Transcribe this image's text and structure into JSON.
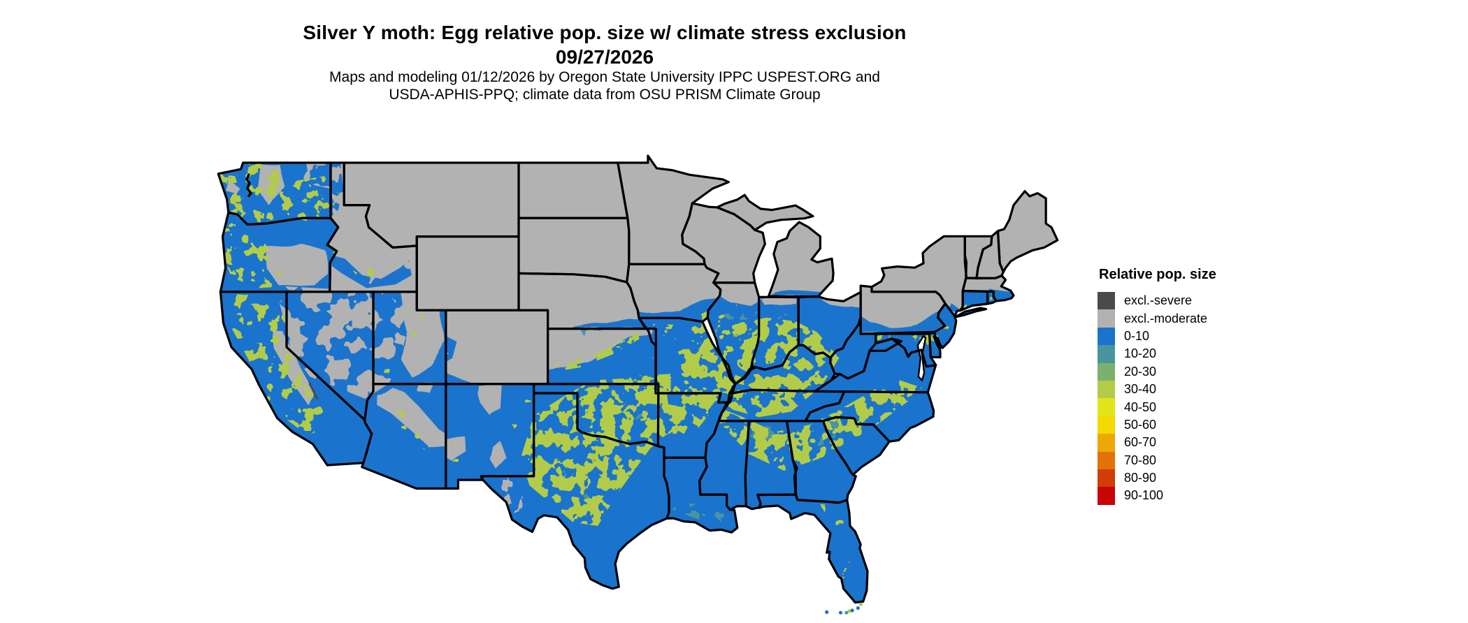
{
  "title": {
    "line1": "Silver Y moth: Egg relative pop. size w/ climate stress exclusion",
    "date": "09/27/2026"
  },
  "subtitle": {
    "line1": "Maps and modeling 01/12/2026 by Oregon State University IPPC USPEST.ORG and",
    "line2": "USDA-APHIS-PPQ; climate data from OSU PRISM Climate Group"
  },
  "legend": {
    "title": "Relative pop. size",
    "items": [
      {
        "label": "excl.-severe",
        "color": "#4a4a4a"
      },
      {
        "label": "excl.-moderate",
        "color": "#b2b2b2"
      },
      {
        "label": "0-10",
        "color": "#1a73cc"
      },
      {
        "label": "10-20",
        "color": "#4a94a0"
      },
      {
        "label": "20-30",
        "color": "#7cb06e"
      },
      {
        "label": "30-40",
        "color": "#b2cc49"
      },
      {
        "label": "40-50",
        "color": "#e2e519"
      },
      {
        "label": "50-60",
        "color": "#f5d900"
      },
      {
        "label": "60-70",
        "color": "#eda806"
      },
      {
        "label": "70-80",
        "color": "#e07207"
      },
      {
        "label": "80-90",
        "color": "#d23c07"
      },
      {
        "label": "90-100",
        "color": "#c80404"
      }
    ]
  },
  "map": {
    "region": "Contiguous United States",
    "background_color": "#ffffff",
    "border_color": "#000000",
    "categories_visible_on_map": [
      "excl.-severe",
      "excl.-moderate",
      "0-10",
      "10-20",
      "20-30",
      "30-40"
    ],
    "pattern_summary": "Northern tier (MT, WY, ND, SD, MN, WI, MI, IA, NE, CO, ID, NY, northern PA, northern New England) excluded-moderate gray; South, East and Pacific coast 0-10 blue with speckled 10-40 bands across central Texas, Oklahoma, Ozarks, Kentucky/Tennessee, the Southeast piedmont, central Illinois/Indiana and the far-West valleys"
  }
}
